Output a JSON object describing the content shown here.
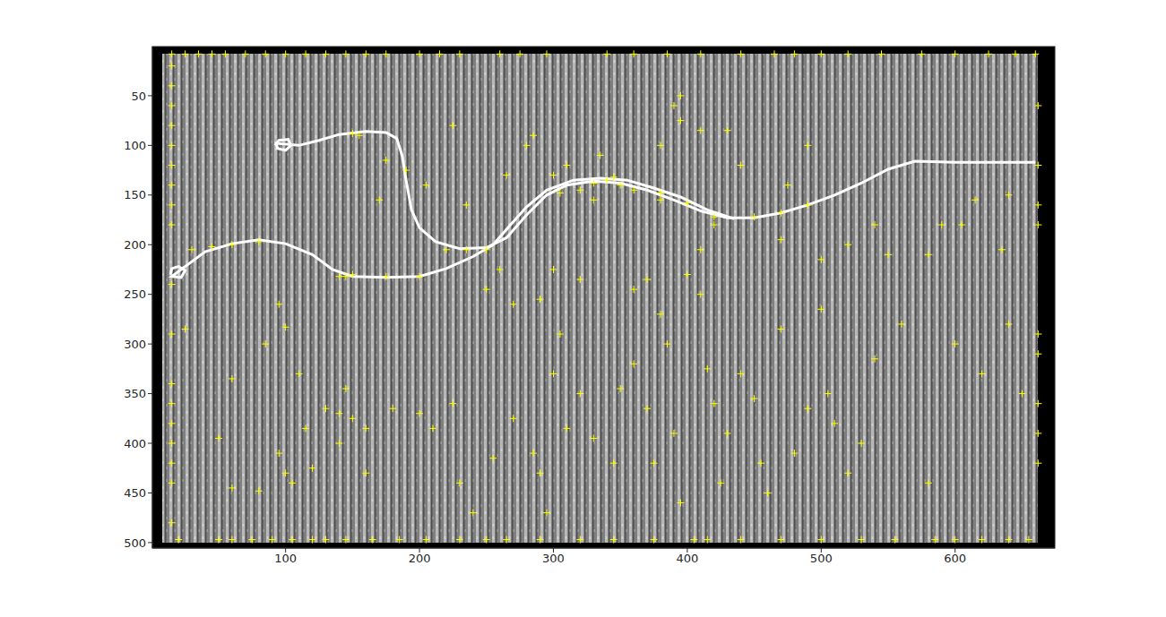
{
  "chart_data": {
    "type": "scatter",
    "xlim": [
      0.5,
      674.5
    ],
    "ylim": [
      0.5,
      505.5
    ],
    "xticks": [
      100,
      200,
      300,
      400,
      500,
      600
    ],
    "yticks": [
      50,
      100,
      150,
      200,
      250,
      300,
      350,
      400,
      450,
      500
    ],
    "series": [
      {
        "type": "line",
        "color": "#ffffff",
        "line_style": "solid",
        "x": [
          92,
          95,
          102,
          104,
          100,
          94,
          93,
          110,
          125,
          140,
          160,
          175,
          183,
          187,
          190,
          194,
          200,
          212,
          230,
          250,
          265,
          280,
          295,
          310,
          330,
          350,
          370,
          390,
          410,
          430,
          450,
          470,
          490,
          510,
          530,
          550,
          570,
          600,
          630,
          660
        ],
        "y": [
          100,
          95,
          94,
          100,
          105,
          103,
          98,
          100,
          95,
          89,
          86,
          87,
          93,
          110,
          135,
          165,
          183,
          197,
          204,
          203,
          193,
          170,
          150,
          140,
          136,
          138,
          145,
          155,
          166,
          173,
          173,
          168,
          160,
          150,
          138,
          124,
          116,
          117,
          117,
          117
        ]
      },
      {
        "type": "line",
        "color": "#ffffff",
        "line_style": "solid",
        "x": [
          14,
          15,
          20,
          25,
          22,
          15,
          25,
          40,
          60,
          80,
          100,
          120,
          135,
          150,
          175,
          200,
          220,
          240,
          255,
          268,
          280,
          295,
          315,
          335,
          355,
          375,
          395,
          415,
          435
        ],
        "y": [
          230,
          224,
          222,
          226,
          233,
          232,
          222,
          207,
          199,
          195,
          199,
          210,
          225,
          232,
          233,
          232,
          224,
          212,
          200,
          180,
          162,
          145,
          135,
          133,
          135,
          143,
          152,
          165,
          174
        ]
      },
      {
        "type": "scatter",
        "color": "#ffff00",
        "marker": "plus",
        "x": [
          15,
          25,
          35,
          45,
          55,
          70,
          85,
          100,
          115,
          130,
          145,
          160,
          175,
          200,
          215,
          230,
          260,
          275,
          295,
          340,
          360,
          385,
          410,
          440,
          465,
          480,
          500,
          520,
          545,
          575,
          600,
          625,
          645,
          660,
          20,
          50,
          60,
          75,
          90,
          105,
          120,
          130,
          145,
          165,
          185,
          205,
          230,
          250,
          265,
          290,
          320,
          345,
          375,
          405,
          415,
          440,
          470,
          500,
          530,
          555,
          585,
          600,
          620,
          640,
          655,
          15,
          15,
          15,
          15,
          15,
          15,
          15,
          15,
          15,
          15,
          15,
          15,
          15,
          15,
          15,
          15,
          15,
          15,
          662,
          662,
          662,
          662,
          662,
          662,
          662,
          662,
          662,
          150,
          155,
          145,
          150,
          175,
          200,
          220,
          235,
          250,
          330,
          340,
          345,
          350,
          360,
          380,
          400,
          420,
          450,
          470,
          490,
          30,
          45,
          60,
          80,
          140,
          305,
          320,
          380,
          100,
          85,
          95,
          60,
          25,
          130,
          140,
          145,
          150,
          140,
          160,
          100,
          105,
          95,
          50,
          60,
          80,
          115,
          110,
          120,
          160,
          180,
          200,
          210,
          225,
          230,
          240,
          255,
          270,
          285,
          290,
          295,
          300,
          305,
          310,
          320,
          330,
          345,
          350,
          360,
          370,
          375,
          380,
          385,
          390,
          395,
          410,
          415,
          420,
          425,
          430,
          440,
          450,
          455,
          460,
          470,
          480,
          490,
          500,
          505,
          510,
          520,
          530,
          540,
          560,
          580,
          600,
          620,
          640,
          650,
          250,
          260,
          270,
          290,
          300,
          320,
          360,
          370,
          400,
          410,
          470,
          500,
          550,
          580,
          605,
          590,
          635,
          640,
          615,
          520,
          540,
          475,
          420,
          395,
          410,
          430,
          440,
          490,
          285,
          300,
          310,
          330,
          335,
          280,
          225,
          265,
          235,
          205,
          190,
          170,
          175,
          380,
          390,
          395
        ],
        "y": [
          8,
          8,
          8,
          8,
          8,
          8,
          8,
          8,
          8,
          8,
          8,
          8,
          8,
          8,
          8,
          8,
          8,
          8,
          8,
          8,
          8,
          8,
          8,
          8,
          8,
          8,
          8,
          8,
          8,
          8,
          8,
          8,
          8,
          8,
          497,
          497,
          497,
          497,
          497,
          497,
          497,
          497,
          497,
          497,
          497,
          497,
          497,
          497,
          497,
          497,
          497,
          497,
          497,
          497,
          497,
          497,
          497,
          497,
          497,
          497,
          497,
          497,
          497,
          497,
          497,
          20,
          40,
          60,
          80,
          100,
          120,
          140,
          160,
          180,
          240,
          290,
          340,
          360,
          380,
          400,
          420,
          440,
          480,
          60,
          120,
          160,
          180,
          290,
          310,
          360,
          390,
          420,
          88,
          90,
          232,
          230,
          232,
          232,
          205,
          205,
          205,
          138,
          135,
          132,
          140,
          145,
          155,
          158,
          172,
          172,
          168,
          160,
          205,
          202,
          200,
          197,
          232,
          148,
          145,
          148,
          283,
          300,
          260,
          335,
          285,
          365,
          370,
          345,
          375,
          400,
          430,
          430,
          440,
          410,
          395,
          445,
          448,
          385,
          330,
          425,
          385,
          365,
          370,
          385,
          360,
          440,
          470,
          415,
          375,
          410,
          430,
          470,
          330,
          290,
          385,
          350,
          395,
          420,
          345,
          320,
          365,
          420,
          270,
          300,
          390,
          460,
          250,
          325,
          360,
          440,
          390,
          330,
          355,
          420,
          450,
          285,
          410,
          365,
          265,
          350,
          380,
          430,
          400,
          315,
          280,
          440,
          300,
          330,
          280,
          350,
          245,
          225,
          260,
          255,
          225,
          235,
          245,
          235,
          230,
          205,
          195,
          215,
          210,
          210,
          180,
          180,
          205,
          150,
          155,
          200,
          180,
          140,
          180,
          50,
          85,
          85,
          120,
          100,
          90,
          130,
          120,
          155,
          110,
          100,
          80,
          130,
          160,
          140,
          125,
          155,
          115,
          100,
          60,
          75
        ]
      }
    ]
  }
}
